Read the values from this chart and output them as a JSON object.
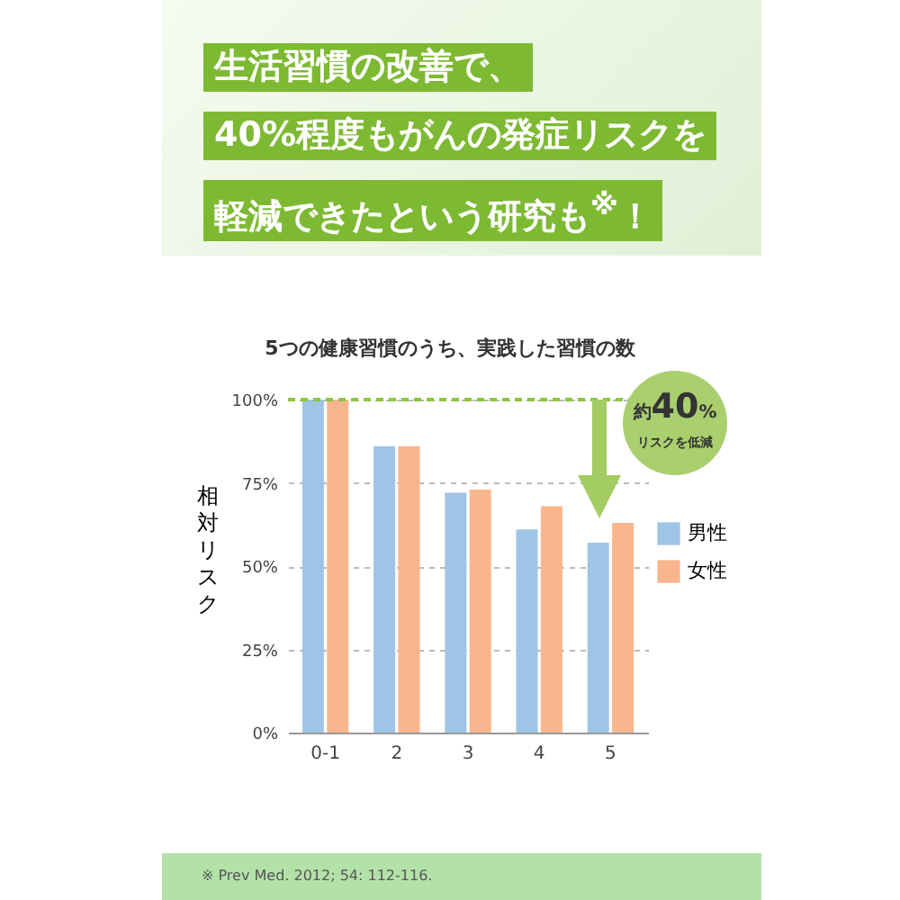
{
  "chart_data": {
    "type": "bar",
    "title": "生活習慣の改善で、",
    "subtitle": "5つの健康習慣のうち、実践した習慣の数",
    "ylabel": "相対リスク",
    "categories": [
      "0-1",
      "2",
      "3",
      "4",
      "5"
    ],
    "series": [
      {
        "name": "男性",
        "color": "#9fc5e6",
        "values": [
          100,
          86,
          72,
          61,
          57
        ]
      },
      {
        "name": "女性",
        "color": "#f9b58e",
        "values": [
          100,
          86,
          73,
          68,
          63
        ]
      }
    ],
    "ylim": [
      0,
      100
    ],
    "yticks": [
      {
        "value": 0,
        "label": "0%"
      },
      {
        "value": 25,
        "label": "25%"
      },
      {
        "value": 50,
        "label": "50%"
      },
      {
        "value": 75,
        "label": "75%"
      },
      {
        "value": 100,
        "label": "100%"
      }
    ],
    "grid": "y",
    "legend": "right",
    "ref_lines": [
      {
        "axis": "y",
        "value": 100,
        "color": "#8dc63f",
        "line_style": "dashed"
      }
    ],
    "annotations": [
      "40%程度もがんの発症リスクを",
      "軽減できたという研究も$^{※}$！",
      "約40%",
      "リスクを低減",
      "※ Prev Med. 2012; 54: 112-116."
    ]
  }
}
